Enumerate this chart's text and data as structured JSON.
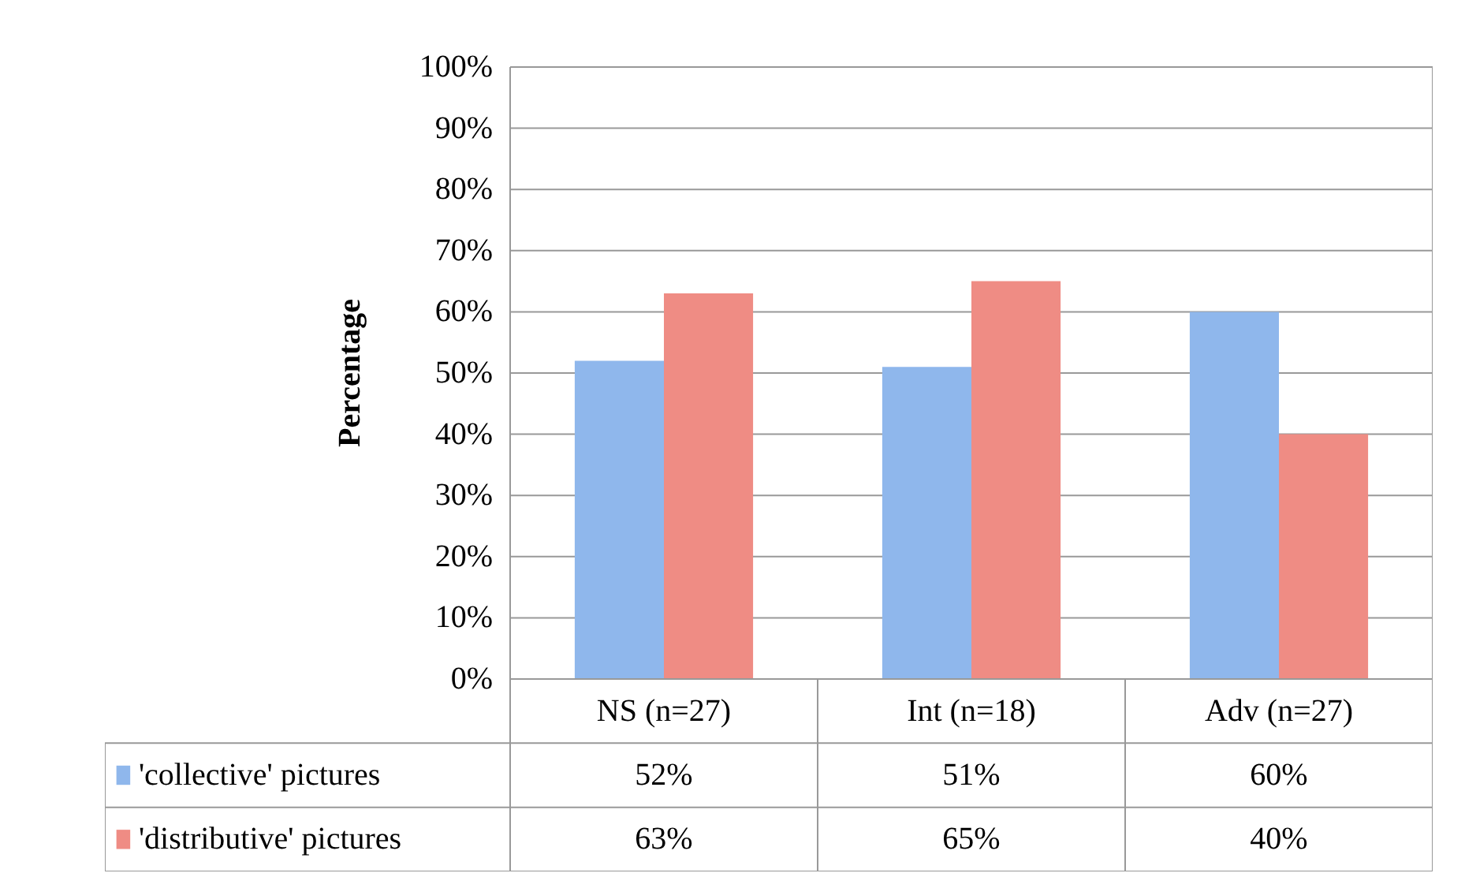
{
  "chart_data": {
    "type": "bar",
    "ylabel": "Percentage",
    "categories": [
      "NS (n=27)",
      "Int (n=18)",
      "Adv (n=27)"
    ],
    "series": [
      {
        "name": "'collective' pictures",
        "color": "#8fb7ec",
        "values": [
          52,
          51,
          60
        ],
        "value_labels": [
          "52%",
          "51%",
          "60%"
        ]
      },
      {
        "name": "'distributive' pictures",
        "color": "#ef8c84",
        "values": [
          63,
          65,
          40
        ],
        "value_labels": [
          "63%",
          "65%",
          "40%"
        ]
      }
    ],
    "ylim": [
      0,
      100
    ],
    "yticks": [
      {
        "value": 0,
        "label": "0%"
      },
      {
        "value": 10,
        "label": "10%"
      },
      {
        "value": 20,
        "label": "20%"
      },
      {
        "value": 30,
        "label": "30%"
      },
      {
        "value": 40,
        "label": "40%"
      },
      {
        "value": 50,
        "label": "50%"
      },
      {
        "value": 60,
        "label": "60%"
      },
      {
        "value": 70,
        "label": "70%"
      },
      {
        "value": 80,
        "label": "80%"
      },
      {
        "value": 90,
        "label": "90%"
      },
      {
        "value": 100,
        "label": "100%"
      }
    ],
    "grid": "y",
    "legend": "bottom"
  }
}
